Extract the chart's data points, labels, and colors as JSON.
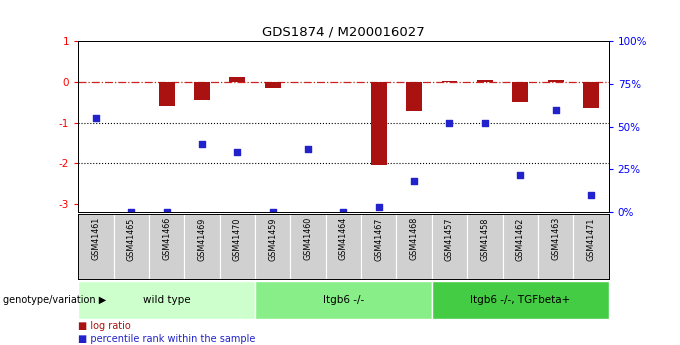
{
  "title": "GDS1874 / M200016027",
  "samples": [
    "GSM41461",
    "GSM41465",
    "GSM41466",
    "GSM41469",
    "GSM41470",
    "GSM41459",
    "GSM41460",
    "GSM41464",
    "GSM41467",
    "GSM41468",
    "GSM41457",
    "GSM41458",
    "GSM41462",
    "GSM41463",
    "GSM41471"
  ],
  "log_ratio": [
    0.0,
    0.0,
    -0.6,
    -0.45,
    0.12,
    -0.15,
    0.0,
    0.0,
    -2.05,
    -0.7,
    0.02,
    0.04,
    -0.5,
    0.04,
    -0.65
  ],
  "percentile_rank": [
    55,
    0,
    0,
    40,
    35,
    0,
    37,
    0,
    3,
    18,
    52,
    52,
    22,
    60,
    10
  ],
  "groups": [
    {
      "label": "wild type",
      "start": 0,
      "end": 4,
      "color": "#ccffcc"
    },
    {
      "label": "Itgb6 -/-",
      "start": 5,
      "end": 9,
      "color": "#88ee88"
    },
    {
      "label": "Itgb6 -/-, TGFbeta+",
      "start": 10,
      "end": 14,
      "color": "#44cc44"
    }
  ],
  "bar_color": "#aa1111",
  "dot_color": "#2222cc",
  "ylim_left": [
    -3.2,
    1.0
  ],
  "ylim_right": [
    0,
    100
  ],
  "legend_items": [
    "log ratio",
    "percentile rank within the sample"
  ],
  "genotype_label": "genotype/variation",
  "background_color": "#ffffff",
  "right_ytick_labels": [
    "0%",
    "25%",
    "50%",
    "75%",
    "100%"
  ],
  "right_ytick_values": [
    0,
    25,
    50,
    75,
    100
  ],
  "left_ytick_values": [
    -3,
    -2,
    -1,
    0,
    1
  ],
  "left_ytick_labels": [
    "-3",
    "-2",
    "-1",
    "0",
    "1"
  ]
}
